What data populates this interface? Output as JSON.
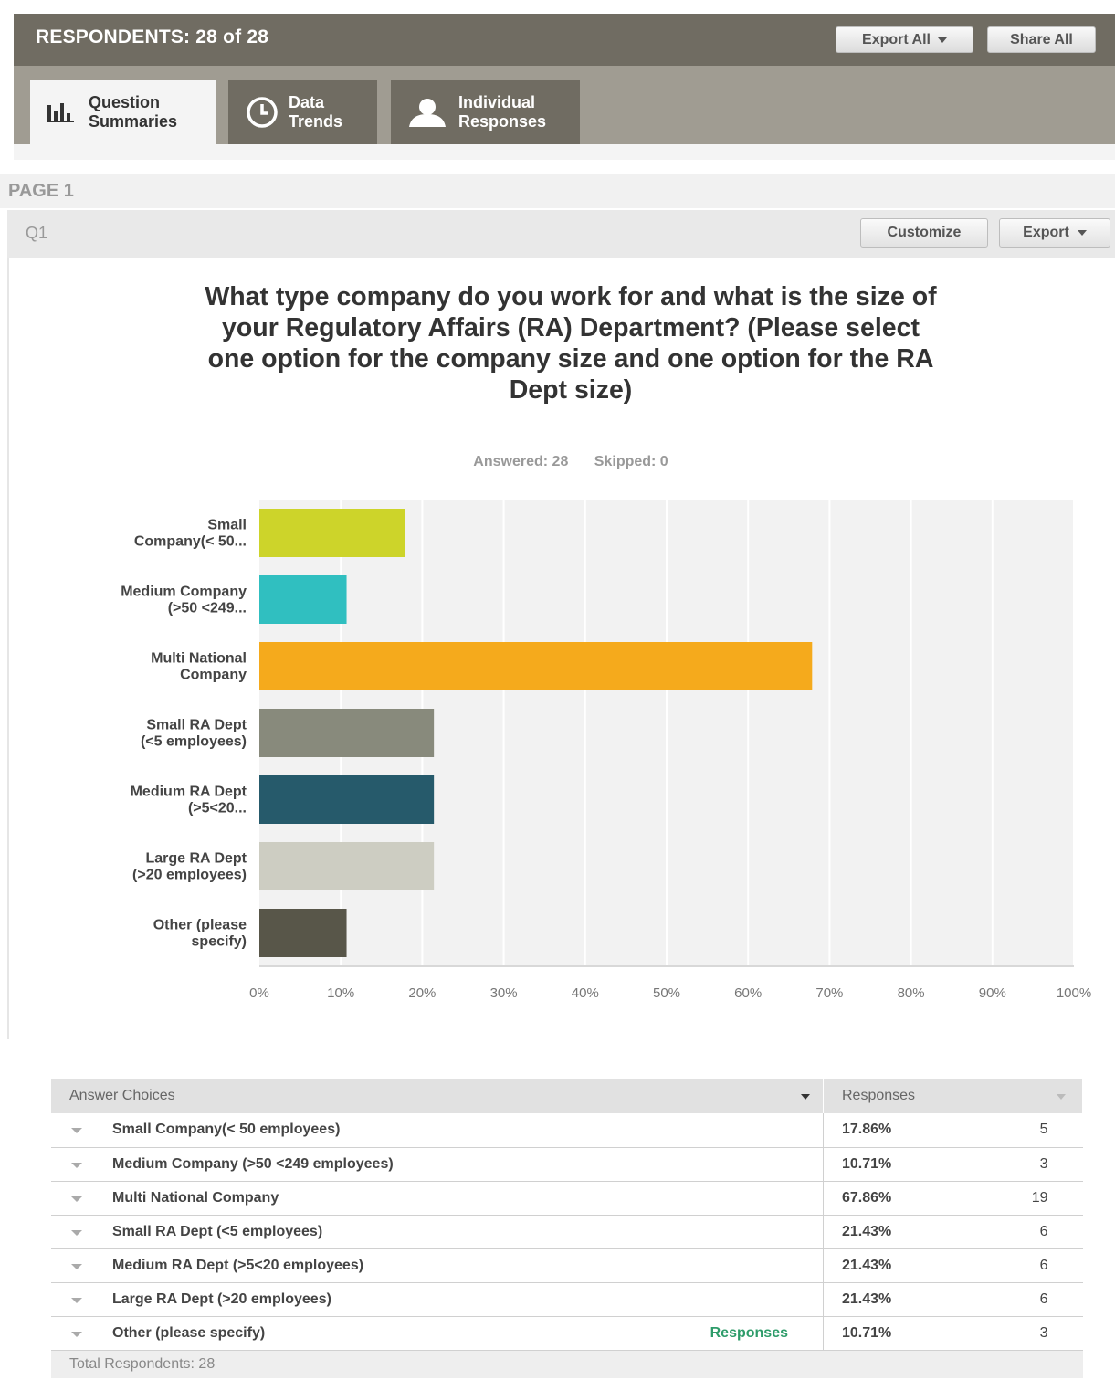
{
  "header": {
    "respondents_text": "RESPONDENTS: 28 of 28",
    "export_all": "Export All",
    "share_all": "Share All",
    "tabs": [
      {
        "label_line1": "Question",
        "label_line2": "Summaries",
        "icon": "bar-chart-icon",
        "active": true
      },
      {
        "label_line1": "Data",
        "label_line2": "Trends",
        "icon": "clock-icon",
        "active": false
      },
      {
        "label_line1": "Individual",
        "label_line2": "Responses",
        "icon": "person-icon",
        "active": false
      }
    ]
  },
  "page": {
    "label": "PAGE 1",
    "question_number": "Q1",
    "customize": "Customize",
    "export": "Export",
    "title": "What type company do you work for and what is the size of your Regulatory Affairs (RA) Department? (Please select one option for the company size and one option for the RA Dept size)",
    "answered": "Answered: 28",
    "skipped": "Skipped: 0"
  },
  "chart_data": {
    "type": "bar",
    "orientation": "horizontal",
    "categories": [
      [
        "Small",
        "Company(< 50..."
      ],
      [
        "Medium Company",
        "(>50 <249..."
      ],
      [
        "Multi National",
        "Company"
      ],
      [
        "Small RA Dept",
        "(<5 employees)"
      ],
      [
        "Medium RA Dept",
        "(>5<20..."
      ],
      [
        "Large RA Dept",
        "(>20 employees)"
      ],
      [
        "Other (please",
        "specify)"
      ]
    ],
    "values": [
      17.86,
      10.71,
      67.86,
      21.43,
      21.43,
      21.43,
      10.71
    ],
    "colors": [
      "#cdd42a",
      "#30bfc0",
      "#f5aa1c",
      "#888a7c",
      "#265a6b",
      "#cdcdc2",
      "#585649"
    ],
    "x_ticks": [
      "0%",
      "10%",
      "20%",
      "30%",
      "40%",
      "50%",
      "60%",
      "70%",
      "80%",
      "90%",
      "100%"
    ],
    "xlim": [
      0,
      100
    ],
    "grid": true
  },
  "table": {
    "col_choices": "Answer Choices",
    "col_responses": "Responses",
    "rows": [
      {
        "choice": "Small Company(< 50 employees)",
        "pct": "17.86%",
        "count": "5"
      },
      {
        "choice": "Medium Company (>50 <249 employees)",
        "pct": "10.71%",
        "count": "3"
      },
      {
        "choice": "Multi National Company",
        "pct": "67.86%",
        "count": "19"
      },
      {
        "choice": "Small RA Dept (<5 employees)",
        "pct": "21.43%",
        "count": "6"
      },
      {
        "choice": "Medium RA Dept (>5<20 employees)",
        "pct": "21.43%",
        "count": "6"
      },
      {
        "choice": "Large RA Dept (>20 employees)",
        "pct": "21.43%",
        "count": "6"
      },
      {
        "choice": "Other (please specify)",
        "pct": "10.71%",
        "count": "3",
        "link": "Responses"
      }
    ],
    "total": "Total Respondents: 28"
  }
}
